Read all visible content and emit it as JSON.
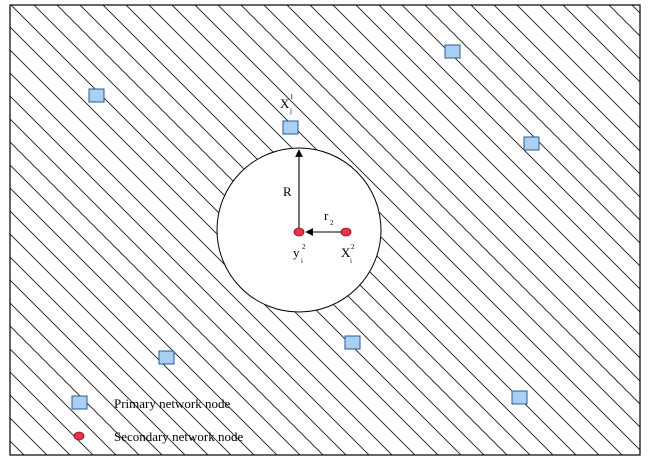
{
  "colors": {
    "hatch": "#1a1a1a",
    "frame": "#000000",
    "primary_fill": "#a9cff2",
    "primary_stroke": "#2b5a8c",
    "secondary_fill": "#e8334a",
    "secondary_stroke": "#8a1020",
    "arrow": "#000000"
  },
  "labels": {
    "xj_main": "X",
    "xj_sub": "j",
    "xj_sup": "1",
    "R": "R",
    "r_main": "r",
    "r_sub": "2",
    "yi_main": "y",
    "yi_sub": "i",
    "yi_sup": "2",
    "xi_main": "X",
    "xi_sub": "i",
    "xi_sup": "2"
  },
  "legend": {
    "primary": "Primary network  node",
    "secondary": "Secondary network  node"
  },
  "icons": {
    "primary": "square-node-icon",
    "secondary": "oval-node-icon"
  }
}
